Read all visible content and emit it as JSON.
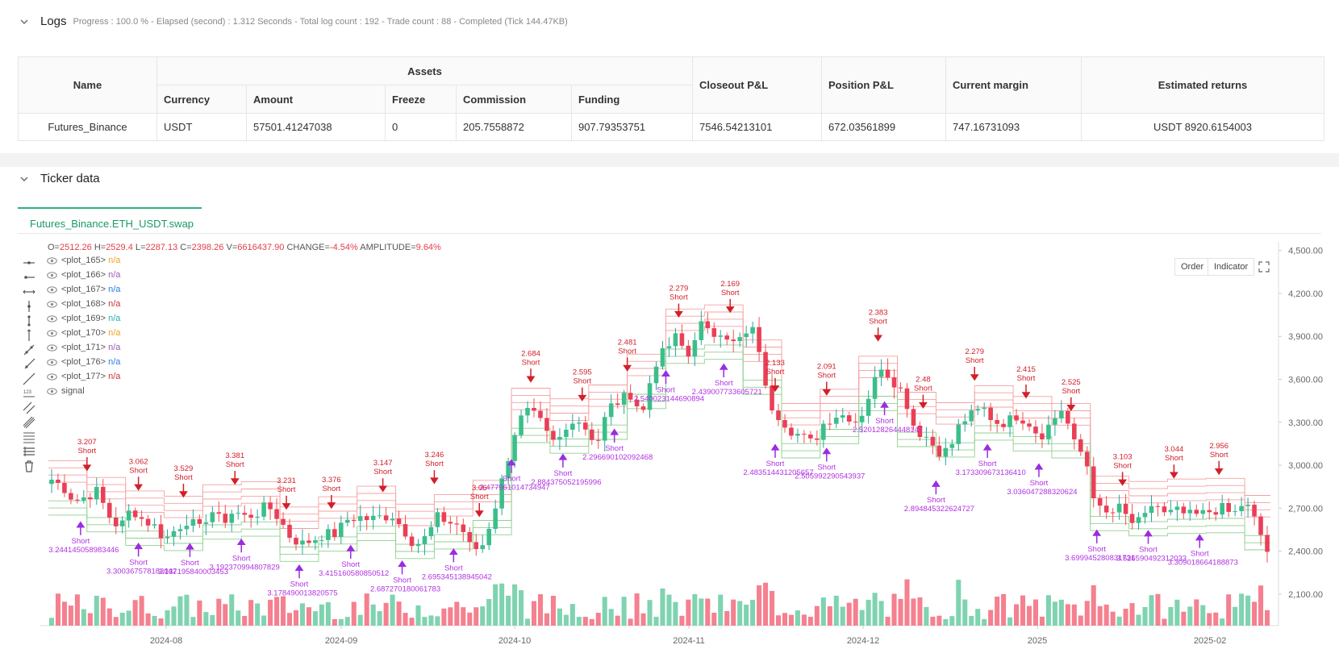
{
  "logs": {
    "title": "Logs",
    "meta": "Progress : 100.0 % - Elapsed (second) : 1.312  Seconds - Total log count : 192 - Trade count : 88 - Completed (Tick 144.47KB)"
  },
  "assets_table": {
    "group_header": "Assets",
    "headers": {
      "name": "Name",
      "currency": "Currency",
      "amount": "Amount",
      "freeze": "Freeze",
      "commission": "Commission",
      "funding": "Funding",
      "closeout": "Closeout P&L",
      "position": "Position P&L",
      "margin": "Current margin",
      "returns": "Estimated returns"
    },
    "row": {
      "name": "Futures_Binance",
      "currency": "USDT",
      "amount": "57501.41247038",
      "freeze": "0",
      "commission": "205.7558872",
      "funding": "907.79353751",
      "closeout": "7546.54213101",
      "position": "672.03561899",
      "margin": "747.16731093",
      "returns": "USDT 8920.6154003"
    }
  },
  "ticker": {
    "title": "Ticker data",
    "tab": "Futures_Binance.ETH_USDT.swap"
  },
  "ohlc": {
    "o_label": "O=",
    "o": "2512.26",
    "h_label": "H=",
    "h": "2529.4",
    "l_label": "L=",
    "l": "2287.13",
    "c_label": "C=",
    "c": "2398.26",
    "v_label": "V=",
    "v": "6616437.90",
    "change_label": "CHANGE=",
    "change": "-4.54%",
    "amp_label": "AMPLITUDE=",
    "amp": "9.64%"
  },
  "legend": [
    {
      "label": "<plot_165>",
      "value": "n/a",
      "color": "#f0a020"
    },
    {
      "label": "<plot_166>",
      "value": "n/a",
      "color": "#9b59b6"
    },
    {
      "label": "<plot_167>",
      "value": "n/a",
      "color": "#2a7ae2"
    },
    {
      "label": "<plot_168>",
      "value": "n/a",
      "color": "#d0303a"
    },
    {
      "label": "<plot_169>",
      "value": "n/a",
      "color": "#20b0b0"
    },
    {
      "label": "<plot_170>",
      "value": "n/a",
      "color": "#f0a020"
    },
    {
      "label": "<plot_171>",
      "value": "n/a",
      "color": "#9b59b6"
    },
    {
      "label": "<plot_176>",
      "value": "n/a",
      "color": "#2a7ae2"
    },
    {
      "label": "<plot_177>",
      "value": "n/a",
      "color": "#d0303a"
    },
    {
      "label": "signal",
      "value": "",
      "color": "#555"
    }
  ],
  "buttons": {
    "order": "Order",
    "indicator": "Indicator"
  },
  "chart_data": {
    "type": "candlestick",
    "y_ticks": [
      "4,500.00",
      "4,200.00",
      "3,900.00",
      "3,600.00",
      "3,300.00",
      "3,000.00",
      "2,700.00",
      "2,400.00",
      "2,100.00"
    ],
    "y_tick_values": [
      4500,
      4200,
      3900,
      3600,
      3300,
      3000,
      2700,
      2400,
      2100
    ],
    "x_ticks": [
      "2024-08",
      "2024-09",
      "2024-10",
      "2024-11",
      "2024-12",
      "2025",
      "2025-02"
    ],
    "ylim": [
      1880,
      4560
    ],
    "close_anchors": [
      2900,
      2850,
      2750,
      2780,
      2820,
      2650,
      2560,
      2700,
      2620,
      2580,
      2480,
      2560,
      2620,
      2550,
      2690,
      2600,
      2680,
      2640,
      2660,
      2720,
      2630,
      2500,
      2450,
      2480,
      2520,
      2520,
      2620,
      2640,
      2620,
      2640,
      2650,
      2550,
      2440,
      2500,
      2640,
      2600,
      2580,
      2400,
      2450,
      2700,
      3000,
      3300,
      3380,
      3300,
      3150,
      3200,
      3350,
      3260,
      3150,
      3400,
      3450,
      3500,
      3350,
      3700,
      3800,
      3900,
      3750,
      4000,
      3900,
      3950,
      3850,
      3900,
      3950,
      3450,
      3350,
      3250,
      3200,
      3150,
      3300,
      3350,
      3350,
      3300,
      3500,
      3700,
      3600,
      3500,
      3250,
      3200,
      3100,
      3100,
      3300,
      3350,
      3400,
      3300,
      3300,
      3350,
      3300,
      3200,
      3300,
      3400,
      3150,
      3050,
      2700,
      2650,
      2700,
      2600,
      2600,
      2750,
      2650,
      2680,
      2650,
      2650,
      2680,
      2700,
      2650,
      2750,
      2600,
      2400
    ],
    "annotations": {
      "red_arrow_labels": [
        "3.207",
        "3.062",
        "3.529",
        "3.381",
        "3.231",
        "3.376",
        "3.147",
        "3.246",
        "3.06",
        "2.684",
        "2.595",
        "2.481",
        "2.279",
        "2.169",
        "2.133",
        "2.091",
        "2.383",
        "2.48",
        "2.279",
        "2.415",
        "2.525",
        "3.103",
        "3.044",
        "2.956"
      ],
      "purple_labels": [
        "3.244145058983446",
        "3.300367578183042",
        "3.137195840003453",
        "3.192370994807829",
        "3.178490013820575",
        "3.415160580850512",
        "2.687270180061783",
        "2.695345138945042",
        "2.477961014734947",
        "2.884375052195996",
        "2.296690102092468",
        "2.540023144690894",
        "2.439007733605721",
        "2.483514431205657",
        "2.505992290543937",
        "2.520128264448147",
        "2.894845322624727",
        "3.173309673136410",
        "3.036047288320624",
        "3.699945280831731",
        "3.526590492312033",
        "3.309018664188873"
      ],
      "short_label": "Short"
    }
  }
}
